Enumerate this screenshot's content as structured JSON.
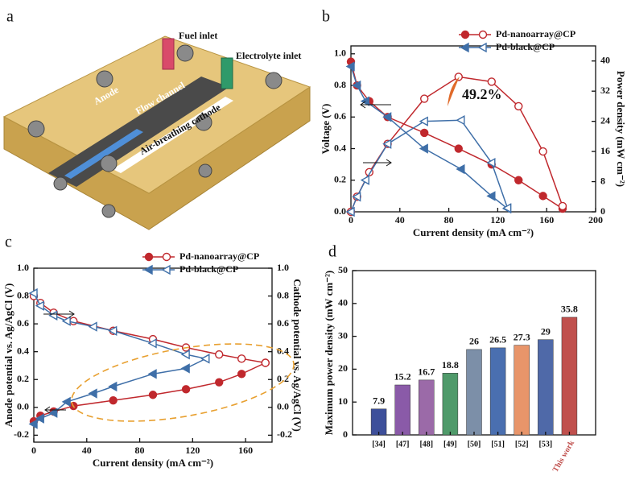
{
  "diagram": {
    "panel": "a",
    "labels": [
      "Fuel inlet",
      "Electrolyte inlet",
      "Anode",
      "Flow channel",
      "Air-breathing cathode"
    ]
  },
  "chart_data": [
    {
      "type": "line",
      "panel": "b",
      "x_label": "Current density (mA cm⁻²)",
      "y_label": "Voltage (V)",
      "y2_label": "Power density (mW cm⁻²)",
      "annotation": "49.2%",
      "legend": "upper right",
      "xlim": [
        0,
        200
      ],
      "xticks": [
        0,
        40,
        80,
        120,
        160,
        200
      ],
      "ylim": [
        0,
        1.05
      ],
      "yticks": [
        {
          "value": 0,
          "label": "0.0"
        },
        0.2,
        0.4,
        0.6,
        0.8,
        {
          "value": 1,
          "label": "1.0"
        }
      ],
      "y2lim": [
        0,
        44
      ],
      "y2ticks": [
        0,
        8,
        16,
        24,
        32,
        40
      ],
      "series": [
        {
          "name": "Pd-nanoarray@CP",
          "color": "#c0282d",
          "marker": "circle",
          "x": [
            0,
            5,
            15,
            30,
            60,
            88,
            115,
            137,
            157,
            173
          ],
          "values": [
            0.95,
            0.8,
            0.7,
            0.6,
            0.5,
            0.4,
            0.3,
            0.2,
            0.1,
            0.02
          ],
          "y2_values": [
            0,
            4,
            10.5,
            18,
            30,
            35.8,
            34.5,
            28,
            16,
            1.5
          ]
        },
        {
          "name": "Pd-black@CP",
          "color": "#3f6fa8",
          "marker": "triangle",
          "x": [
            0,
            5,
            12,
            30,
            60,
            90,
            115,
            128
          ],
          "values": [
            0.92,
            0.8,
            0.7,
            0.6,
            0.4,
            0.27,
            0.1,
            0.02
          ],
          "y2_values": [
            0,
            4,
            8.4,
            18,
            24,
            24.3,
            13,
            1
          ]
        }
      ]
    },
    {
      "type": "line",
      "panel": "c",
      "x_label": "Current density (mA cm⁻²)",
      "y_label": "Anode potential vs. Ag/AgCl (V)",
      "y2_label": "Cathode potential vs. Ag/AgCl (V)",
      "legend": "upper center",
      "xlim": [
        0,
        180
      ],
      "xticks": [
        0,
        40,
        80,
        120,
        160
      ],
      "ylim": [
        -0.25,
        1.0
      ],
      "yticks": [
        -0.2,
        {
          "value": 0,
          "label": "0.0"
        },
        0.2,
        0.4,
        0.6,
        0.8,
        {
          "value": 1,
          "label": "1.0"
        }
      ],
      "y2lim": [
        -0.25,
        1.0
      ],
      "y2ticks": [
        -0.2,
        {
          "value": 0,
          "label": "0.0"
        },
        0.2,
        0.4,
        0.6,
        0.8,
        {
          "value": 1,
          "label": "1.0"
        }
      ],
      "series": [
        {
          "name": "Pd-nanoarray@CP",
          "color": "#c0282d",
          "marker": "circle",
          "x": [
            0,
            5,
            15,
            30,
            60,
            90,
            115,
            140,
            157,
            175
          ],
          "values": [
            -0.1,
            -0.06,
            -0.03,
            0.01,
            0.05,
            0.09,
            0.13,
            0.18,
            0.24,
            0.32
          ],
          "y2_values": [
            0.8,
            0.75,
            0.68,
            0.62,
            0.55,
            0.49,
            0.43,
            0.38,
            0.35,
            0.32
          ]
        },
        {
          "name": "Pd-black@CP",
          "color": "#3f6fa8",
          "marker": "triangle",
          "x": [
            0,
            5,
            15,
            25,
            45,
            60,
            90,
            115,
            130
          ],
          "values": [
            -0.12,
            -0.08,
            -0.04,
            0.04,
            0.1,
            0.15,
            0.24,
            0.28,
            0.35
          ],
          "y2_values": [
            0.82,
            0.73,
            0.66,
            0.62,
            0.58,
            0.55,
            0.46,
            0.38,
            0.35
          ]
        }
      ]
    },
    {
      "type": "bar",
      "panel": "d",
      "y_label": "Maximum  power density (mW cm⁻²)",
      "categories": [
        "[34]",
        "[47]",
        "[48]",
        "[49]",
        "[50]",
        "[51]",
        "[52]",
        "[53]",
        "This work"
      ],
      "values": [
        7.9,
        15.2,
        16.7,
        18.8,
        26,
        26.5,
        27.3,
        29,
        35.8
      ],
      "colors": [
        "#3d4f9a",
        "#8a5aa8",
        "#9b6aa8",
        "#4f9a6a",
        "#7c8fa8",
        "#4a6fb0",
        "#e8956a",
        "#4f69a8",
        "#c0504d"
      ],
      "ylim": [
        0,
        50
      ],
      "yticks": [
        0,
        10,
        20,
        30,
        40,
        50
      ]
    }
  ]
}
